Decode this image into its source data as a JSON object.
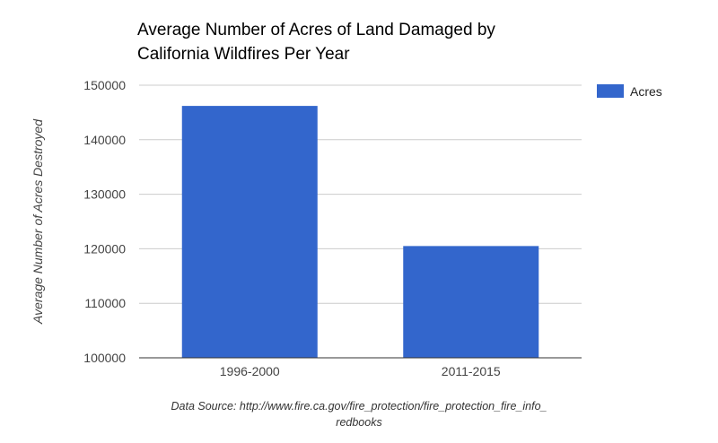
{
  "chart_data": {
    "type": "bar",
    "title": "Average Number of Acres of Land Damaged by California Wildfires Per Year",
    "title_lines": [
      "Average Number of Acres of Land Damaged by",
      "California Wildfires Per Year"
    ],
    "xlabel": "",
    "ylabel": "Average Number of Acres Destroyed",
    "categories": [
      "1996-2000",
      "2011-2015"
    ],
    "series": [
      {
        "name": "Acres",
        "values": [
          146200,
          120500
        ],
        "color": "#3366cc"
      }
    ],
    "ylim": [
      100000,
      150000
    ],
    "yticks": [
      100000,
      110000,
      120000,
      130000,
      140000,
      150000
    ],
    "ytick_labels": [
      "100000",
      "110000",
      "120000",
      "130000",
      "140000",
      "150000"
    ],
    "grid": true,
    "legend_position": "right",
    "source_note_lines": [
      "Data Source: http://www.fire.ca.gov/fire_protection/fire_protection_fire_info_",
      "redbooks"
    ]
  }
}
